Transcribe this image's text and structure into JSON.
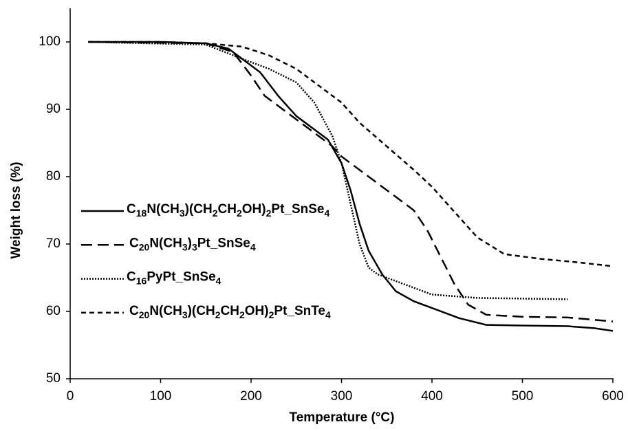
{
  "chart_data": {
    "type": "line",
    "xlabel": "Temperature (°C)",
    "ylabel": "Weight loss (%)",
    "xlim": [
      0,
      600
    ],
    "xticks": [
      0,
      100,
      200,
      300,
      400,
      500,
      600
    ],
    "ylim": [
      50,
      100
    ],
    "yticks": [
      50,
      60,
      70,
      80,
      90,
      100
    ],
    "grid": false,
    "legend": "left",
    "series": [
      {
        "name": "C18N(CH3)(CH2CH2OH)2Pt_SnSe4",
        "color": "#000000",
        "style": "solid",
        "x": [
          20,
          100,
          150,
          175,
          190,
          210,
          230,
          250,
          270,
          285,
          300,
          310,
          320,
          330,
          345,
          360,
          380,
          400,
          430,
          460,
          500,
          550,
          580,
          600
        ],
        "values": [
          100,
          100,
          99.8,
          99,
          97.5,
          95.5,
          92,
          89,
          87,
          85.5,
          82,
          78,
          73,
          69,
          65.5,
          63,
          61.5,
          60.5,
          59,
          58,
          57.9,
          57.8,
          57.5,
          57.1
        ]
      },
      {
        "name": "C20N(CH3)3Pt_SnSe4",
        "color": "#000000",
        "style": "dashed",
        "x": [
          20,
          150,
          180,
          190,
          200,
          215,
          240,
          270,
          290,
          300,
          320,
          340,
          360,
          380,
          395,
          410,
          425,
          440,
          460,
          500,
          550,
          600
        ],
        "values": [
          100,
          99.8,
          98.5,
          96.8,
          95,
          92,
          89.5,
          86.5,
          84.5,
          83,
          81,
          79,
          77,
          75,
          72,
          68,
          64,
          61,
          59.5,
          59.2,
          59.1,
          58.5
        ]
      },
      {
        "name": "C16PyPt_SnSe4",
        "color": "#000000",
        "style": "dotted",
        "x": [
          20,
          150,
          190,
          220,
          250,
          270,
          290,
          300,
          310,
          320,
          330,
          340,
          360,
          400,
          450,
          500,
          550
        ],
        "values": [
          100,
          99.6,
          97.5,
          96,
          94,
          91,
          86,
          82,
          76,
          70,
          66.5,
          65.5,
          64.5,
          62.5,
          62,
          61.9,
          61.8
        ]
      },
      {
        "name": "C20N(CH3)(CH2CH2OH)2Pt_SnTe4",
        "color": "#000000",
        "style": "short-dashed",
        "x": [
          20,
          100,
          150,
          190,
          220,
          250,
          280,
          300,
          320,
          350,
          380,
          400,
          420,
          450,
          480,
          520,
          560,
          600
        ],
        "values": [
          100,
          100,
          99.8,
          99.3,
          98,
          96,
          93,
          91,
          88,
          84.5,
          81,
          78.5,
          75.5,
          71,
          68.5,
          67.8,
          67.3,
          66.7
        ]
      }
    ]
  }
}
